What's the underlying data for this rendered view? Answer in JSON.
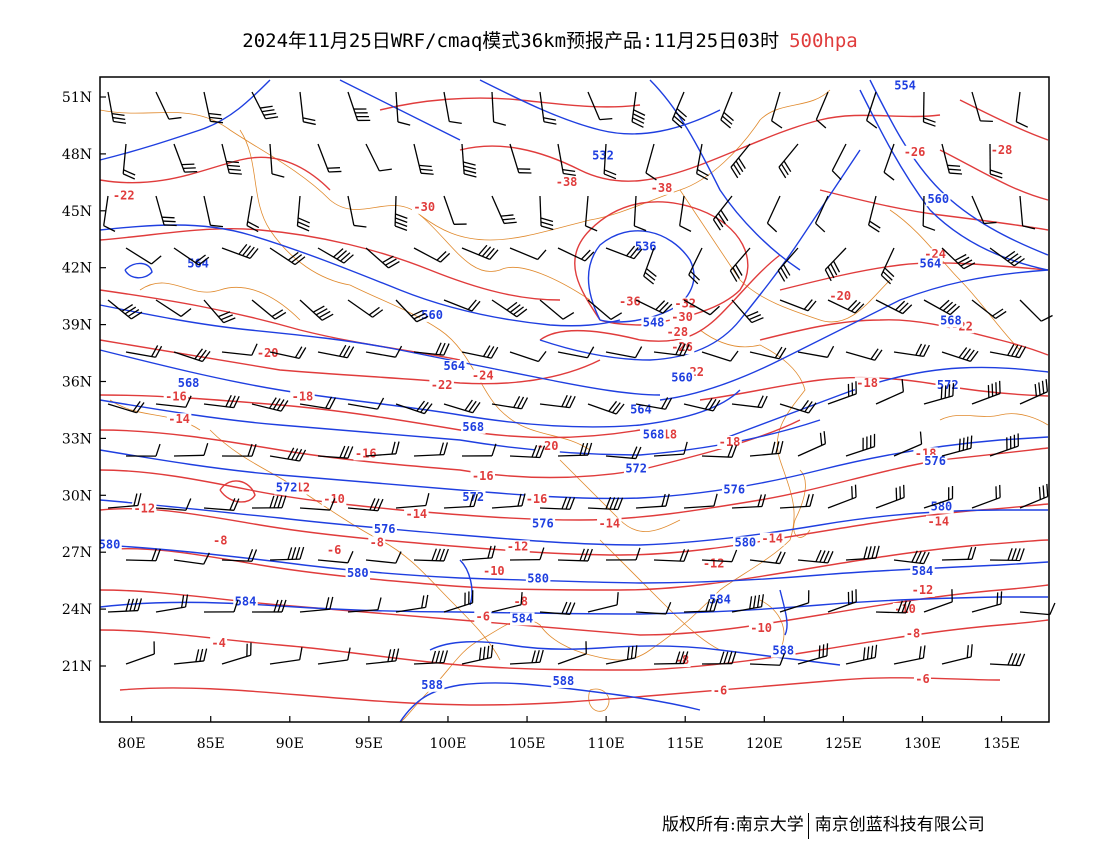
{
  "title": {
    "main": "2024年11月25日WRF/cmaq模式36km预报产品:11月25日03时",
    "level": "500hpa"
  },
  "credits": {
    "left": "版权所有:南京大学",
    "right": "南京创蓝科技有限公司"
  },
  "axes": {
    "lat_labels": [
      "51N",
      "48N",
      "45N",
      "42N",
      "39N",
      "36N",
      "33N",
      "30N",
      "27N",
      "24N",
      "21N"
    ],
    "lon_labels": [
      "80E",
      "85E",
      "90E",
      "95E",
      "100E",
      "105E",
      "110E",
      "115E",
      "120E",
      "125E",
      "130E",
      "135E"
    ],
    "lon_range": [
      78,
      138
    ],
    "lat_range": [
      18,
      52
    ]
  },
  "colors": {
    "temperature": "#e03c3c",
    "height": "#1f3fe0",
    "border": "#e08a2e",
    "barb": "#000000"
  },
  "temperature_labels": [
    {
      "v": "-22",
      "lon": 79.5,
      "lat": 45.6
    },
    {
      "v": "-30",
      "lon": 98.5,
      "lat": 45.0
    },
    {
      "v": "-38",
      "lon": 107.5,
      "lat": 46.3
    },
    {
      "v": "-38",
      "lon": 113.5,
      "lat": 46.0
    },
    {
      "v": "-26",
      "lon": 129.5,
      "lat": 47.9
    },
    {
      "v": "-28",
      "lon": 135.0,
      "lat": 48.0
    },
    {
      "v": "-24",
      "lon": 130.8,
      "lat": 42.5
    },
    {
      "v": "-20",
      "lon": 124.8,
      "lat": 40.3
    },
    {
      "v": "-22",
      "lon": 132.5,
      "lat": 38.7
    },
    {
      "v": "-36",
      "lon": 111.5,
      "lat": 40.0
    },
    {
      "v": "-32",
      "lon": 115.0,
      "lat": 39.9
    },
    {
      "v": "-30",
      "lon": 114.8,
      "lat": 39.2
    },
    {
      "v": "-28",
      "lon": 114.5,
      "lat": 38.4
    },
    {
      "v": "-26",
      "lon": 114.8,
      "lat": 37.6
    },
    {
      "v": "-22",
      "lon": 115.5,
      "lat": 36.3
    },
    {
      "v": "-20",
      "lon": 88.6,
      "lat": 37.3
    },
    {
      "v": "-22",
      "lon": 99.6,
      "lat": 35.6
    },
    {
      "v": "-24",
      "lon": 102.2,
      "lat": 36.1
    },
    {
      "v": "-18",
      "lon": 126.5,
      "lat": 35.7
    },
    {
      "v": "-16",
      "lon": 82.8,
      "lat": 35.0
    },
    {
      "v": "-18",
      "lon": 90.8,
      "lat": 35.0
    },
    {
      "v": "-14",
      "lon": 83.0,
      "lat": 33.8
    },
    {
      "v": "-20",
      "lon": 106.3,
      "lat": 32.4
    },
    {
      "v": "-18",
      "lon": 113.8,
      "lat": 33.0
    },
    {
      "v": "-18",
      "lon": 117.8,
      "lat": 32.6
    },
    {
      "v": "-18",
      "lon": 130.2,
      "lat": 32.0
    },
    {
      "v": "-16",
      "lon": 94.8,
      "lat": 32.0
    },
    {
      "v": "-12",
      "lon": 90.6,
      "lat": 30.2
    },
    {
      "v": "-16",
      "lon": 102.2,
      "lat": 30.8
    },
    {
      "v": "-16",
      "lon": 105.6,
      "lat": 29.6
    },
    {
      "v": "-10",
      "lon": 92.8,
      "lat": 29.6
    },
    {
      "v": "-12",
      "lon": 80.8,
      "lat": 29.1
    },
    {
      "v": "-14",
      "lon": 98.0,
      "lat": 28.8
    },
    {
      "v": "-14",
      "lon": 110.2,
      "lat": 28.3
    },
    {
      "v": "-14",
      "lon": 131.0,
      "lat": 28.4
    },
    {
      "v": "-14",
      "lon": 120.5,
      "lat": 27.5
    },
    {
      "v": "-8",
      "lon": 85.6,
      "lat": 27.4
    },
    {
      "v": "-8",
      "lon": 95.5,
      "lat": 27.3
    },
    {
      "v": "-6",
      "lon": 92.8,
      "lat": 26.9
    },
    {
      "v": "-12",
      "lon": 104.4,
      "lat": 27.1
    },
    {
      "v": "-12",
      "lon": 116.8,
      "lat": 26.2
    },
    {
      "v": "-10",
      "lon": 102.9,
      "lat": 25.8
    },
    {
      "v": "-12",
      "lon": 130.0,
      "lat": 24.8
    },
    {
      "v": "-8",
      "lon": 104.6,
      "lat": 24.2
    },
    {
      "v": "-10",
      "lon": 128.9,
      "lat": 23.8
    },
    {
      "v": "-6",
      "lon": 102.2,
      "lat": 23.4
    },
    {
      "v": "-10",
      "lon": 119.8,
      "lat": 22.8
    },
    {
      "v": "-8",
      "lon": 129.4,
      "lat": 22.5
    },
    {
      "v": "-4",
      "lon": 85.5,
      "lat": 22.0
    },
    {
      "v": "-8",
      "lon": 114.8,
      "lat": 21.1
    },
    {
      "v": "-6",
      "lon": 117.2,
      "lat": 19.5
    },
    {
      "v": "-6",
      "lon": 130.0,
      "lat": 20.1
    }
  ],
  "height_labels": [
    {
      "v": "554",
      "lon": 128.9,
      "lat": 51.4
    },
    {
      "v": "532",
      "lon": 109.8,
      "lat": 47.7
    },
    {
      "v": "560",
      "lon": 131.0,
      "lat": 45.4
    },
    {
      "v": "536",
      "lon": 112.5,
      "lat": 42.9
    },
    {
      "v": "564",
      "lon": 84.2,
      "lat": 42.0
    },
    {
      "v": "564",
      "lon": 130.5,
      "lat": 42.0
    },
    {
      "v": "560",
      "lon": 99.0,
      "lat": 39.3
    },
    {
      "v": "568",
      "lon": 131.8,
      "lat": 39.0
    },
    {
      "v": "548",
      "lon": 113.0,
      "lat": 38.9
    },
    {
      "v": "564",
      "lon": 100.4,
      "lat": 36.6
    },
    {
      "v": "560",
      "lon": 114.8,
      "lat": 36.0
    },
    {
      "v": "568",
      "lon": 83.6,
      "lat": 35.7
    },
    {
      "v": "572",
      "lon": 131.6,
      "lat": 35.6
    },
    {
      "v": "564",
      "lon": 112.2,
      "lat": 34.3
    },
    {
      "v": "568",
      "lon": 101.6,
      "lat": 33.4
    },
    {
      "v": "568",
      "lon": 113.0,
      "lat": 33.0
    },
    {
      "v": "576",
      "lon": 130.8,
      "lat": 31.6
    },
    {
      "v": "572",
      "lon": 111.9,
      "lat": 31.2
    },
    {
      "v": "572",
      "lon": 89.8,
      "lat": 30.2
    },
    {
      "v": "576",
      "lon": 118.1,
      "lat": 30.1
    },
    {
      "v": "572",
      "lon": 101.6,
      "lat": 29.7
    },
    {
      "v": "580",
      "lon": 131.2,
      "lat": 29.2
    },
    {
      "v": "576",
      "lon": 96.0,
      "lat": 28.0
    },
    {
      "v": "576",
      "lon": 106.0,
      "lat": 28.3
    },
    {
      "v": "580",
      "lon": 78.6,
      "lat": 27.2
    },
    {
      "v": "580",
      "lon": 118.8,
      "lat": 27.3
    },
    {
      "v": "580",
      "lon": 94.3,
      "lat": 25.7
    },
    {
      "v": "580",
      "lon": 105.7,
      "lat": 25.4
    },
    {
      "v": "584",
      "lon": 130.0,
      "lat": 25.8
    },
    {
      "v": "584",
      "lon": 87.2,
      "lat": 24.2
    },
    {
      "v": "584",
      "lon": 117.2,
      "lat": 24.3
    },
    {
      "v": "584",
      "lon": 104.7,
      "lat": 23.3
    },
    {
      "v": "588",
      "lon": 121.2,
      "lat": 21.6
    },
    {
      "v": "588",
      "lon": 99.0,
      "lat": 19.8
    },
    {
      "v": "588",
      "lon": 107.3,
      "lat": 20.0
    }
  ],
  "wind_barbs_note": ""
}
